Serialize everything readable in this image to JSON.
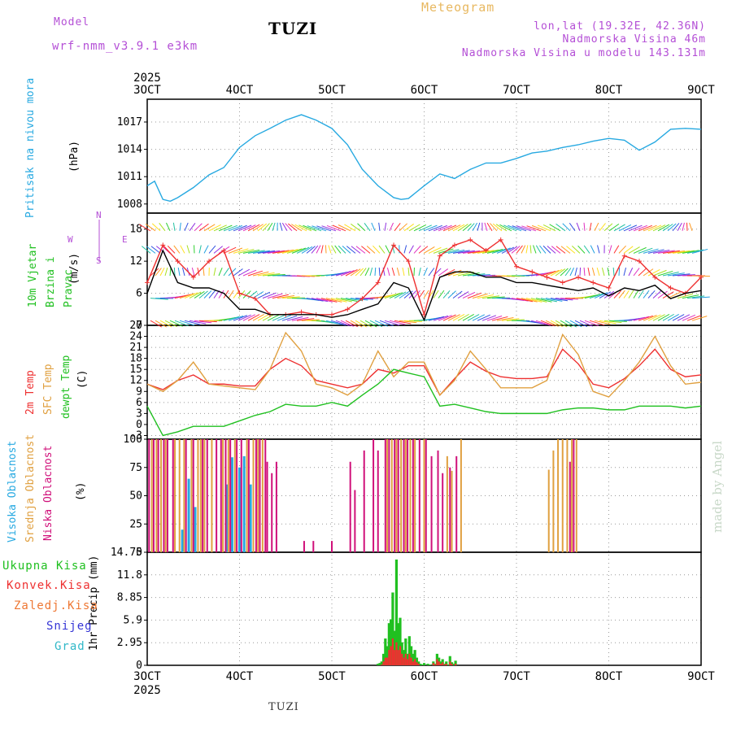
{
  "header": {
    "model_label": "Model",
    "model_name": "wrf-nmm_v3.9.1  e3km",
    "station": "TUZI",
    "product": "Meteogram",
    "coords": "lon,lat (19.32E, 42.36N)",
    "elevation": "Nadmorska Visina 46m",
    "model_elevation": "Nadmorska Visina u modelu 143.131m",
    "credit": "made by Angel",
    "footer_station": "TUZI",
    "colors": {
      "purple": "#b44fd6",
      "gold": "#e8b860",
      "blue": "#27a9e1",
      "green": "#20c020",
      "red": "#ee3030",
      "orange": "#ee7733",
      "snow": "#3535d5",
      "grad": "#30b8c8",
      "magenta": "#d0107a"
    }
  },
  "time_axis": {
    "year": "2025",
    "labels": [
      "3OCT",
      "4OCT",
      "5OCT",
      "6OCT",
      "7OCT",
      "8OCT",
      "9OCT"
    ],
    "start_day": 3,
    "end_day": 9
  },
  "chart_data": [
    {
      "type": "line",
      "id": "pressure",
      "title": "Pritisak na nivou mora",
      "ylabel": "Pritisak na nivou mora",
      "unit": "(hPa)",
      "ylim": [
        1007,
        1019.5
      ],
      "yticks": [
        1008,
        1011,
        1014,
        1017
      ],
      "x": [
        3.0,
        3.08,
        3.17,
        3.25,
        3.33,
        3.5,
        3.67,
        3.83,
        4.0,
        4.17,
        4.33,
        4.5,
        4.67,
        4.83,
        5.0,
        5.17,
        5.33,
        5.5,
        5.67,
        5.75,
        5.83,
        6.0,
        6.17,
        6.33,
        6.5,
        6.67,
        6.83,
        7.0,
        7.17,
        7.33,
        7.5,
        7.67,
        7.83,
        8.0,
        8.17,
        8.33,
        8.5,
        8.67,
        8.83,
        9.0
      ],
      "series": [
        {
          "name": "MSLP",
          "color": "#27a9e1",
          "values": [
            1010,
            1010.5,
            1008.5,
            1008.3,
            1008.7,
            1009.8,
            1011.2,
            1012.0,
            1014.2,
            1015.5,
            1016.3,
            1017.2,
            1017.8,
            1017.2,
            1016.3,
            1014.5,
            1011.8,
            1010.0,
            1008.7,
            1008.5,
            1008.6,
            1010.0,
            1011.3,
            1010.8,
            1011.8,
            1012.5,
            1012.5,
            1013.0,
            1013.6,
            1013.8,
            1014.2,
            1014.5,
            1014.9,
            1015.2,
            1015.0,
            1013.9,
            1014.8,
            1016.2,
            1016.3,
            1016.2
          ]
        }
      ]
    },
    {
      "type": "line",
      "id": "wind",
      "title": "10m Vjetar Brzina i Pravac",
      "ylabel": "10m Vjetar Brzina i Pravac",
      "unit": "(m/s)",
      "ylim": [
        0,
        21
      ],
      "yticks": [
        0,
        6,
        12,
        18
      ],
      "compass": [
        "N",
        "W",
        "E",
        "S"
      ],
      "x": [
        3.0,
        3.17,
        3.33,
        3.5,
        3.67,
        3.83,
        4.0,
        4.17,
        4.33,
        4.5,
        4.67,
        4.83,
        5.0,
        5.17,
        5.33,
        5.5,
        5.67,
        5.83,
        6.0,
        6.17,
        6.33,
        6.5,
        6.67,
        6.83,
        7.0,
        7.17,
        7.33,
        7.5,
        7.67,
        7.83,
        8.0,
        8.17,
        8.33,
        8.5,
        8.67,
        8.83,
        9.0
      ],
      "series": [
        {
          "name": "Mean wind",
          "color": "#000000",
          "values": [
            6,
            14,
            8,
            7,
            7,
            6,
            3,
            3,
            2,
            2,
            2,
            2,
            1.5,
            2,
            3,
            4,
            8,
            7,
            1,
            9,
            10,
            10,
            9,
            9,
            8,
            8,
            7.5,
            7,
            6.5,
            7,
            5.5,
            7,
            6.5,
            7.5,
            5,
            6,
            6.5
          ]
        },
        {
          "name": "Gust",
          "color": "#ee3030",
          "values": [
            8,
            15,
            12,
            9,
            12,
            14,
            6,
            5,
            2,
            2,
            2.5,
            2,
            2,
            3,
            5,
            8,
            15,
            12,
            2,
            13,
            15,
            16,
            14,
            16,
            11,
            10,
            9,
            8,
            9,
            8,
            7,
            13,
            12,
            9,
            7,
            6,
            9
          ]
        }
      ]
    },
    {
      "type": "line",
      "id": "temperature",
      "title": "2m Temp, SFC Temp, dewpt Temp",
      "ylabel": "2m Temp / SFC Temp / dewpt Temp",
      "unit": "(C)",
      "ylim": [
        -4,
        27
      ],
      "yticks": [
        -3,
        0,
        3,
        6,
        9,
        12,
        15,
        18,
        21,
        24,
        27
      ],
      "x": [
        3.0,
        3.17,
        3.33,
        3.5,
        3.67,
        3.83,
        4.0,
        4.17,
        4.33,
        4.5,
        4.67,
        4.83,
        5.0,
        5.17,
        5.33,
        5.5,
        5.67,
        5.83,
        6.0,
        6.17,
        6.33,
        6.5,
        6.67,
        6.83,
        7.0,
        7.17,
        7.33,
        7.5,
        7.67,
        7.83,
        8.0,
        8.17,
        8.33,
        8.5,
        8.67,
        8.83,
        9.0
      ],
      "series": [
        {
          "name": "2m Temp",
          "color": "#ee3030",
          "values": [
            11,
            9.5,
            12,
            13.5,
            11,
            11,
            10.5,
            10.5,
            15,
            18,
            16,
            12,
            11,
            10,
            11,
            15,
            14,
            16,
            16,
            8,
            12.5,
            17,
            14.5,
            13,
            12.5,
            12.5,
            13,
            20.5,
            16.5,
            11,
            10,
            12.5,
            16,
            20.5,
            15,
            13,
            13.5
          ]
        },
        {
          "name": "SFC Temp",
          "color": "#e0a040",
          "values": [
            11,
            9,
            12,
            17,
            11,
            10.5,
            10,
            9.5,
            15,
            25,
            20,
            11,
            10,
            8,
            11,
            20,
            13,
            17,
            17,
            8,
            12,
            20,
            15,
            10,
            10,
            10,
            12,
            24.5,
            19,
            9,
            7.5,
            12,
            17,
            24,
            16,
            11,
            11.5
          ]
        },
        {
          "name": "dewpt Temp",
          "color": "#20c020",
          "values": [
            5,
            -3,
            -2,
            -0.5,
            -0.5,
            -0.5,
            1,
            2.5,
            3.5,
            5.5,
            5,
            5,
            6,
            5,
            8,
            11,
            15,
            14,
            13,
            5,
            5.5,
            4.5,
            3.5,
            3,
            3,
            3,
            3,
            4,
            4.5,
            4.5,
            4,
            4,
            5,
            5,
            5,
            4.5,
            5
          ]
        }
      ]
    },
    {
      "type": "bar",
      "id": "cloud",
      "title": "Visoka / Srednja / Niska Oblacnost",
      "ylabel": "Visoka Oblacnost / Srednja Oblacnost / Niska Oblacnost",
      "unit": "(%)",
      "ylim": [
        0,
        100
      ],
      "yticks": [
        0,
        25,
        50,
        75,
        100
      ],
      "series": [
        {
          "name": "Visoka Oblacnost",
          "color": "#27a9e1",
          "x": [
            3.38,
            3.45,
            3.52,
            3.86,
            3.92,
            4.0,
            4.05,
            4.12
          ],
          "values": [
            20,
            65,
            40,
            60,
            84,
            75,
            85,
            60
          ]
        },
        {
          "name": "Srednja Oblacnost",
          "color": "#e0a040",
          "x": [
            3.05,
            3.1,
            3.15,
            3.2,
            3.3,
            3.35,
            3.4,
            3.48,
            3.55,
            3.58,
            3.62,
            3.7,
            3.82,
            3.88,
            3.95,
            4.08,
            4.15,
            4.2,
            4.25,
            5.6,
            5.65,
            5.7,
            5.75,
            5.8,
            5.85,
            5.9,
            6.0,
            6.25,
            6.3,
            6.4,
            7.35,
            7.4,
            7.45,
            7.5,
            7.55,
            7.6,
            7.65
          ],
          "values": [
            100,
            100,
            100,
            100,
            100,
            100,
            100,
            100,
            100,
            100,
            100,
            100,
            100,
            100,
            100,
            100,
            100,
            100,
            100,
            100,
            100,
            100,
            100,
            100,
            100,
            100,
            100,
            85,
            72,
            100,
            73,
            90,
            100,
            100,
            100,
            100,
            100
          ]
        },
        {
          "name": "Niska Oblacnost",
          "color": "#d0107a",
          "x": [
            3.02,
            3.07,
            3.12,
            3.18,
            3.22,
            3.28,
            3.42,
            3.5,
            3.6,
            3.65,
            3.75,
            3.8,
            3.85,
            3.9,
            3.97,
            4.02,
            4.1,
            4.18,
            4.22,
            4.28,
            4.3,
            4.35,
            4.4,
            4.7,
            4.8,
            5.0,
            5.2,
            5.25,
            5.35,
            5.45,
            5.5,
            5.58,
            5.62,
            5.68,
            5.72,
            5.78,
            5.82,
            5.88,
            5.95,
            6.02,
            6.08,
            6.15,
            6.2,
            6.28,
            6.35,
            7.58,
            7.62
          ],
          "values": [
            100,
            100,
            100,
            100,
            100,
            100,
            100,
            100,
            100,
            100,
            100,
            100,
            100,
            100,
            100,
            100,
            100,
            100,
            100,
            100,
            80,
            70,
            80,
            10,
            10,
            10,
            80,
            55,
            90,
            100,
            90,
            100,
            100,
            100,
            100,
            100,
            100,
            100,
            100,
            100,
            85,
            90,
            70,
            75,
            85,
            80,
            100
          ]
        }
      ]
    },
    {
      "type": "bar",
      "id": "precip",
      "title": "1hr Precip",
      "ylabel": "1hr Precip",
      "unit": "(mm)",
      "ylim": [
        0,
        14.75
      ],
      "yticks": [
        0,
        2.95,
        5.9,
        8.85,
        11.8,
        14.75
      ],
      "legend": [
        "Ukupna Kisa",
        "Konvek.Kisa",
        "Zaledj.Kisa",
        "Snijeg",
        "Grad"
      ],
      "x": [
        5.5,
        5.52,
        5.54,
        5.56,
        5.58,
        5.6,
        5.62,
        5.64,
        5.66,
        5.68,
        5.7,
        5.72,
        5.74,
        5.76,
        5.78,
        5.8,
        5.82,
        5.84,
        5.86,
        5.88,
        5.9,
        5.92,
        5.94,
        5.96,
        5.98,
        6.0,
        6.02,
        6.04,
        6.06,
        6.08,
        6.1,
        6.12,
        6.14,
        6.16,
        6.18,
        6.2,
        6.22,
        6.24,
        6.26,
        6.28,
        6.3,
        6.32,
        6.34,
        6.36,
        6.38
      ],
      "series": [
        {
          "name": "Ukupna Kisa",
          "color": "#20c020",
          "values": [
            0.2,
            0.3,
            0.5,
            1.5,
            3.5,
            2.5,
            5.5,
            6.0,
            9.5,
            4.5,
            13.8,
            5.5,
            6.2,
            3.0,
            2.0,
            3.5,
            1.5,
            3.8,
            2.5,
            1.5,
            2.0,
            1.0,
            0.5,
            0.2,
            0.1,
            0.3,
            0,
            0.2,
            0.1,
            0,
            0.5,
            0.2,
            1.5,
            1.0,
            0.5,
            0.8,
            0.2,
            0.5,
            0.1,
            1.2,
            0.4,
            0.2,
            0.6,
            0,
            0
          ]
        },
        {
          "name": "Konvek.Kisa",
          "color": "#ee3030",
          "values": [
            0,
            0,
            0.1,
            0.5,
            1.0,
            1.0,
            2.0,
            2.5,
            3.5,
            2.0,
            3.0,
            2.0,
            2.5,
            1.5,
            1.0,
            1.5,
            0.8,
            1.5,
            1.0,
            0.5,
            0.8,
            0.4,
            0.2,
            0,
            0,
            0,
            0,
            0,
            0,
            0,
            0.3,
            0.1,
            0.8,
            0.5,
            0.2,
            0.4,
            0.1,
            0.2,
            0,
            0.5,
            0.2,
            0,
            0.2,
            0,
            0
          ]
        }
      ]
    }
  ]
}
